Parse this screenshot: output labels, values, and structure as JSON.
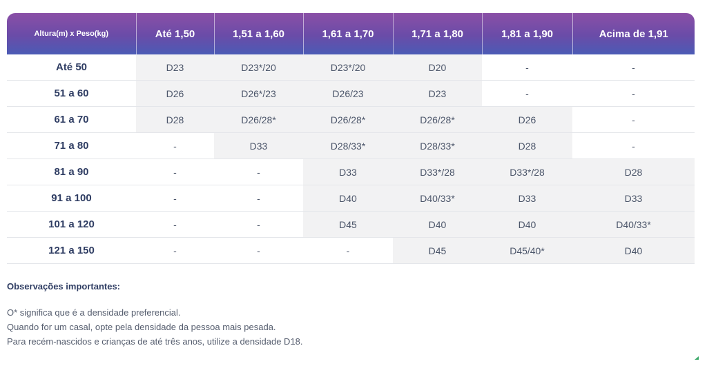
{
  "table": {
    "corner_label": "Altura(m) x Peso(kg)",
    "columns": [
      "Até 1,50",
      "1,51 a 1,60",
      "1,61 a 1,70",
      "1,71 a 1,80",
      "1,81 a 1,90",
      "Acima de 1,91"
    ],
    "rows": [
      {
        "label": "Até 50",
        "cells": [
          "D23",
          "D23*/20",
          "D23*/20",
          "D20",
          "-",
          "-"
        ]
      },
      {
        "label": "51 a 60",
        "cells": [
          "D26",
          "D26*/23",
          "D26/23",
          "D23",
          "-",
          "-"
        ]
      },
      {
        "label": "61 a 70",
        "cells": [
          "D28",
          "D26/28*",
          "D26/28*",
          "D26/28*",
          "D26",
          "-"
        ]
      },
      {
        "label": "71 a 80",
        "cells": [
          "-",
          "D33",
          "D28/33*",
          "D28/33*",
          "D28",
          "-"
        ]
      },
      {
        "label": "81 a 90",
        "cells": [
          "-",
          "-",
          "D33",
          "D33*/28",
          "D33*/28",
          "D28"
        ]
      },
      {
        "label": "91 a 100",
        "cells": [
          "-",
          "-",
          "D40",
          "D40/33*",
          "D33",
          "D33"
        ]
      },
      {
        "label": "101 a 120",
        "cells": [
          "-",
          "-",
          "D45",
          "D40",
          "D40",
          "D40/33*"
        ]
      },
      {
        "label": "121 a 150",
        "cells": [
          "-",
          "-",
          "-",
          "D45",
          "D45/40*",
          "D40"
        ]
      }
    ],
    "shaded": [
      [
        true,
        true,
        true,
        true,
        false,
        false
      ],
      [
        true,
        true,
        true,
        true,
        false,
        false
      ],
      [
        true,
        true,
        true,
        true,
        true,
        false
      ],
      [
        false,
        true,
        true,
        true,
        true,
        false
      ],
      [
        false,
        false,
        true,
        true,
        true,
        true
      ],
      [
        false,
        false,
        true,
        true,
        true,
        true
      ],
      [
        false,
        false,
        true,
        true,
        true,
        true
      ],
      [
        false,
        false,
        false,
        true,
        true,
        true
      ]
    ]
  },
  "notes": {
    "title": "Observações importantes:",
    "lines": [
      "O* significa que é a densidade preferencial.",
      "Quando for um casal, opte pela densidade da pessoa mais pesada.",
      "Para recém-nascidos e crianças de até três anos, utilize a densidade D18."
    ]
  },
  "colors": {
    "header_gradient": [
      "#8a4fa6",
      "#6a4ca8",
      "#4b5bb5"
    ],
    "shaded_cell": "#f2f2f3",
    "row_label": "#2f3d63"
  }
}
